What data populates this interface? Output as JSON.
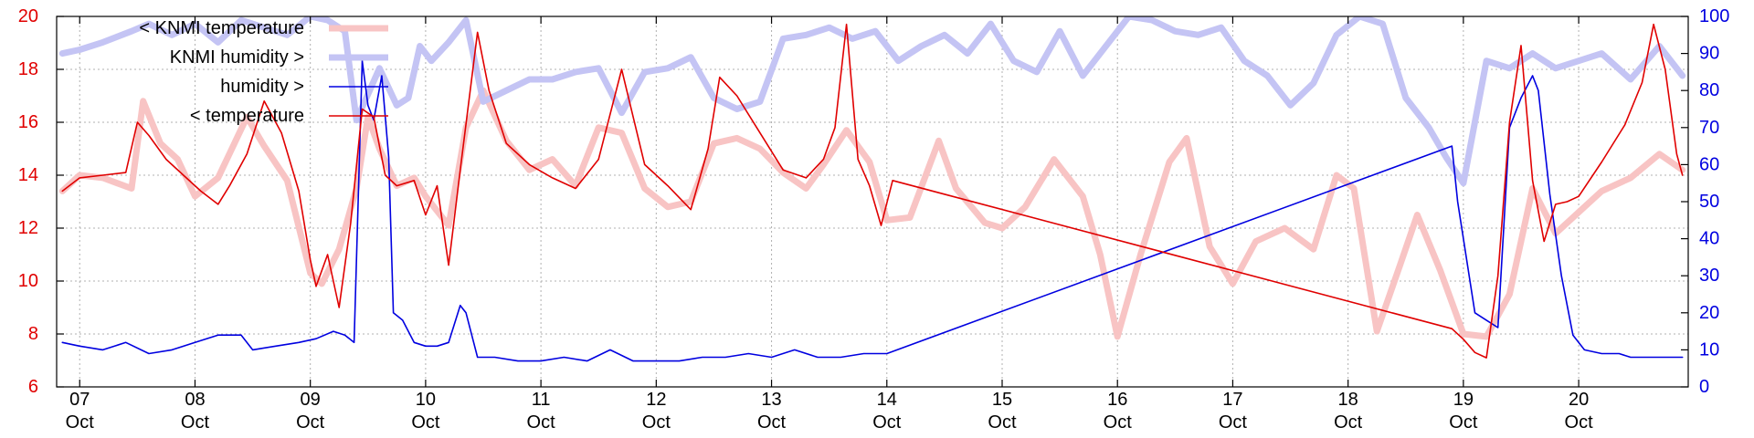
{
  "chart_data": {
    "type": "line",
    "x_ticks": [
      {
        "day": "07",
        "month": "Oct",
        "x": 7
      },
      {
        "day": "08",
        "month": "Oct",
        "x": 8
      },
      {
        "day": "09",
        "month": "Oct",
        "x": 9
      },
      {
        "day": "10",
        "month": "Oct",
        "x": 10
      },
      {
        "day": "11",
        "month": "Oct",
        "x": 11
      },
      {
        "day": "12",
        "month": "Oct",
        "x": 12
      },
      {
        "day": "13",
        "month": "Oct",
        "x": 13
      },
      {
        "day": "14",
        "month": "Oct",
        "x": 14
      },
      {
        "day": "15",
        "month": "Oct",
        "x": 15
      },
      {
        "day": "16",
        "month": "Oct",
        "x": 16
      },
      {
        "day": "17",
        "month": "Oct",
        "x": 17
      },
      {
        "day": "18",
        "month": "Oct",
        "x": 18
      },
      {
        "day": "19",
        "month": "Oct",
        "x": 19
      },
      {
        "day": "20",
        "month": "Oct",
        "x": 20
      }
    ],
    "xlim": [
      6.8,
      20.95
    ],
    "y_left": {
      "ylim": [
        6,
        20
      ],
      "ticks": [
        "6",
        "8",
        "10",
        "12",
        "14",
        "16",
        "18",
        "20"
      ],
      "color": "#e00000"
    },
    "y_right": {
      "ylim": [
        0,
        100
      ],
      "ticks": [
        "0",
        "10",
        "20",
        "30",
        "40",
        "50",
        "60",
        "70",
        "80",
        "90",
        "100"
      ],
      "color": "#0000e0"
    },
    "grid": true,
    "legend_position": "top-left",
    "series": [
      {
        "name": "< KNMI temperature",
        "axis": "left",
        "color": "#f8c4c4",
        "style": "thick",
        "x": [
          6.85,
          7.0,
          7.2,
          7.45,
          7.55,
          7.7,
          7.85,
          8.0,
          8.2,
          8.45,
          8.6,
          8.8,
          9.0,
          9.1,
          9.25,
          9.4,
          9.5,
          9.6,
          9.75,
          9.9,
          10.0,
          10.2,
          10.35,
          10.5,
          10.7,
          10.9,
          11.1,
          11.3,
          11.5,
          11.7,
          11.9,
          12.1,
          12.3,
          12.5,
          12.7,
          12.9,
          13.1,
          13.3,
          13.45,
          13.65,
          13.85,
          14.0,
          14.2,
          14.45,
          14.6,
          14.85,
          15.0,
          15.2,
          15.45,
          15.7,
          15.85,
          16.0,
          16.2,
          16.45,
          16.6,
          16.8,
          17.0,
          17.2,
          17.45,
          17.7,
          17.9,
          18.05,
          18.25,
          18.45,
          18.6,
          18.8,
          19.0,
          19.2,
          19.4,
          19.6,
          19.8,
          20.0,
          20.2,
          20.45,
          20.7,
          20.9
        ],
        "y": [
          13.4,
          14.0,
          13.9,
          13.5,
          16.8,
          15.2,
          14.6,
          13.2,
          13.9,
          16.2,
          15.1,
          13.8,
          10.3,
          9.9,
          11.2,
          13.5,
          16.2,
          15.0,
          13.6,
          13.9,
          13.2,
          12.1,
          15.8,
          17.2,
          15.3,
          14.2,
          14.6,
          13.6,
          15.8,
          15.6,
          13.5,
          12.8,
          13.0,
          15.2,
          15.4,
          15.0,
          14.1,
          13.5,
          14.4,
          15.7,
          14.5,
          12.3,
          12.4,
          15.3,
          13.5,
          12.2,
          12.0,
          12.8,
          14.6,
          13.2,
          11.0,
          7.9,
          11.0,
          14.5,
          15.4,
          11.3,
          9.9,
          11.5,
          12.0,
          11.2,
          14.0,
          13.5,
          8.1,
          10.6,
          12.5,
          10.4,
          8.0,
          7.9,
          9.5,
          13.5,
          11.8,
          12.6,
          13.4,
          13.9,
          14.8,
          14.2
        ]
      },
      {
        "name": "KNMI humidity >",
        "axis": "right",
        "color": "#c4c4f4",
        "style": "thick",
        "x": [
          6.85,
          7.0,
          7.2,
          7.45,
          7.6,
          7.8,
          8.0,
          8.2,
          8.4,
          8.6,
          8.8,
          9.0,
          9.15,
          9.3,
          9.4,
          9.6,
          9.75,
          9.85,
          9.95,
          10.05,
          10.2,
          10.35,
          10.5,
          10.7,
          10.9,
          11.1,
          11.3,
          11.5,
          11.7,
          11.9,
          12.1,
          12.3,
          12.5,
          12.7,
          12.9,
          13.1,
          13.3,
          13.5,
          13.7,
          13.9,
          14.1,
          14.3,
          14.5,
          14.7,
          14.9,
          15.1,
          15.3,
          15.5,
          15.7,
          15.9,
          16.1,
          16.3,
          16.5,
          16.7,
          16.9,
          17.1,
          17.3,
          17.5,
          17.7,
          17.9,
          18.1,
          18.3,
          18.5,
          18.7,
          18.85,
          19.0,
          19.2,
          19.4,
          19.6,
          19.8,
          20.0,
          20.2,
          20.45,
          20.7,
          20.9
        ],
        "y": [
          90,
          91,
          93,
          96,
          98,
          95,
          98,
          93,
          99,
          97,
          95,
          100,
          99,
          96,
          72,
          86,
          76,
          78,
          92,
          88,
          93,
          99,
          77,
          80,
          83,
          83,
          85,
          86,
          74,
          85,
          86,
          89,
          78,
          75,
          77,
          94,
          95,
          97,
          94,
          96,
          88,
          92,
          95,
          90,
          98,
          88,
          85,
          96,
          84,
          92,
          100,
          99,
          96,
          95,
          97,
          88,
          84,
          76,
          82,
          95,
          100,
          98,
          78,
          70,
          62,
          55,
          88,
          86,
          90,
          86,
          88,
          90,
          83,
          92,
          84
        ]
      },
      {
        "name": "humidity >",
        "axis": "right",
        "color": "#0000e0",
        "style": "thin",
        "x": [
          6.85,
          7.0,
          7.2,
          7.4,
          7.6,
          7.8,
          8.0,
          8.2,
          8.4,
          8.5,
          8.7,
          8.9,
          9.05,
          9.2,
          9.3,
          9.38,
          9.45,
          9.5,
          9.55,
          9.62,
          9.68,
          9.72,
          9.8,
          9.9,
          10.0,
          10.1,
          10.2,
          10.3,
          10.35,
          10.45,
          10.6,
          10.8,
          11.0,
          11.2,
          11.4,
          11.6,
          11.8,
          12.0,
          12.2,
          12.4,
          12.6,
          12.8,
          13.0,
          13.2,
          13.4,
          13.6,
          13.8,
          14.0,
          18.9,
          18.95,
          19.0,
          19.1,
          19.2,
          19.3,
          19.4,
          19.5,
          19.6,
          19.65,
          19.75,
          19.85,
          19.95,
          20.05,
          20.2,
          20.35,
          20.45,
          20.6,
          20.75,
          20.9
        ],
        "y": [
          12,
          11,
          10,
          12,
          9,
          10,
          12,
          14,
          14,
          10,
          11,
          12,
          13,
          15,
          14,
          12,
          88,
          76,
          72,
          84,
          62,
          20,
          18,
          12,
          11,
          11,
          12,
          22,
          20,
          8,
          8,
          7,
          7,
          8,
          7,
          10,
          7,
          7,
          7,
          8,
          8,
          9,
          8,
          10,
          8,
          8,
          9,
          9,
          65,
          50,
          40,
          20,
          18,
          16,
          70,
          78,
          84,
          80,
          52,
          30,
          14,
          10,
          9,
          9,
          8,
          8,
          8,
          8
        ]
      },
      {
        "name": "< temperature",
        "axis": "left",
        "color": "#e00000",
        "style": "thin",
        "x": [
          6.85,
          7.0,
          7.2,
          7.4,
          7.5,
          7.6,
          7.75,
          7.9,
          8.05,
          8.2,
          8.3,
          8.45,
          8.6,
          8.75,
          8.9,
          9.0,
          9.05,
          9.15,
          9.25,
          9.35,
          9.45,
          9.55,
          9.65,
          9.75,
          9.9,
          10.0,
          10.1,
          10.2,
          10.3,
          10.45,
          10.55,
          10.7,
          10.9,
          11.1,
          11.3,
          11.5,
          11.7,
          11.9,
          12.1,
          12.3,
          12.45,
          12.55,
          12.7,
          12.9,
          13.1,
          13.3,
          13.45,
          13.55,
          13.65,
          13.75,
          13.85,
          13.95,
          14.05,
          18.9,
          19.0,
          19.1,
          19.2,
          19.3,
          19.4,
          19.5,
          19.6,
          19.7,
          19.8,
          19.9,
          20.0,
          20.2,
          20.4,
          20.55,
          20.65,
          20.75,
          20.85,
          20.9
        ],
        "y": [
          13.4,
          13.9,
          14.0,
          14.1,
          16.0,
          15.5,
          14.6,
          14.0,
          13.4,
          12.9,
          13.6,
          14.8,
          16.8,
          15.6,
          13.4,
          10.8,
          9.8,
          11.0,
          9.0,
          12.2,
          16.5,
          16.2,
          14.0,
          13.6,
          13.8,
          12.5,
          13.6,
          10.6,
          14.2,
          19.4,
          17.2,
          15.2,
          14.4,
          13.9,
          13.5,
          14.6,
          18.0,
          14.4,
          13.6,
          12.7,
          15.0,
          17.7,
          17.0,
          15.6,
          14.2,
          13.9,
          14.6,
          15.8,
          19.7,
          14.6,
          13.6,
          12.1,
          13.8,
          8.2,
          7.8,
          7.3,
          7.1,
          10.2,
          16.0,
          18.9,
          13.8,
          11.5,
          12.9,
          13.0,
          13.2,
          14.5,
          15.9,
          17.5,
          19.7,
          18.0,
          14.8,
          14.0
        ]
      }
    ]
  }
}
